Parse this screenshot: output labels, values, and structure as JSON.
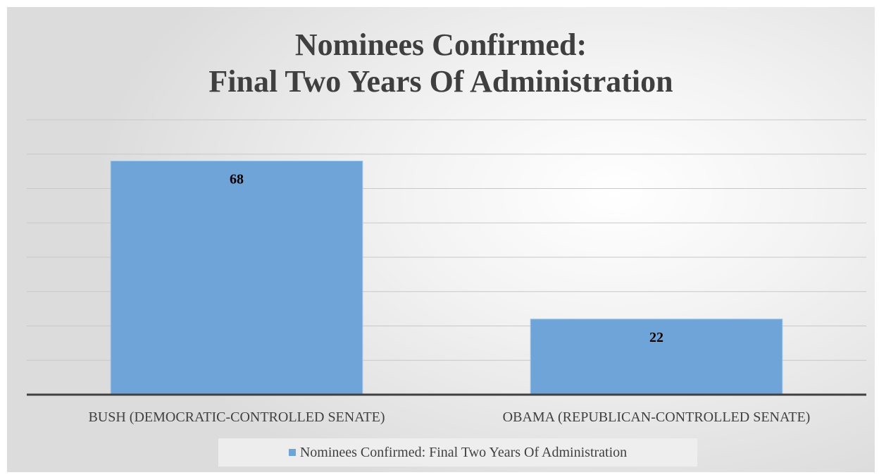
{
  "chart_data": {
    "type": "bar",
    "title_lines": [
      "Nominees Confirmed:",
      "Final Two Years Of Administration"
    ],
    "categories": [
      "BUSH (DEMOCRATIC-CONTROLLED SENATE)",
      "OBAMA (REPUBLICAN-CONTROLLED SENATE)"
    ],
    "series": [
      {
        "name": "Nominees Confirmed: Final Two Years Of Administration",
        "values": [
          68,
          22
        ],
        "color": "#6fa4d9"
      }
    ],
    "ylim": [
      0,
      80
    ],
    "grid": true,
    "legend_position": "bottom"
  }
}
